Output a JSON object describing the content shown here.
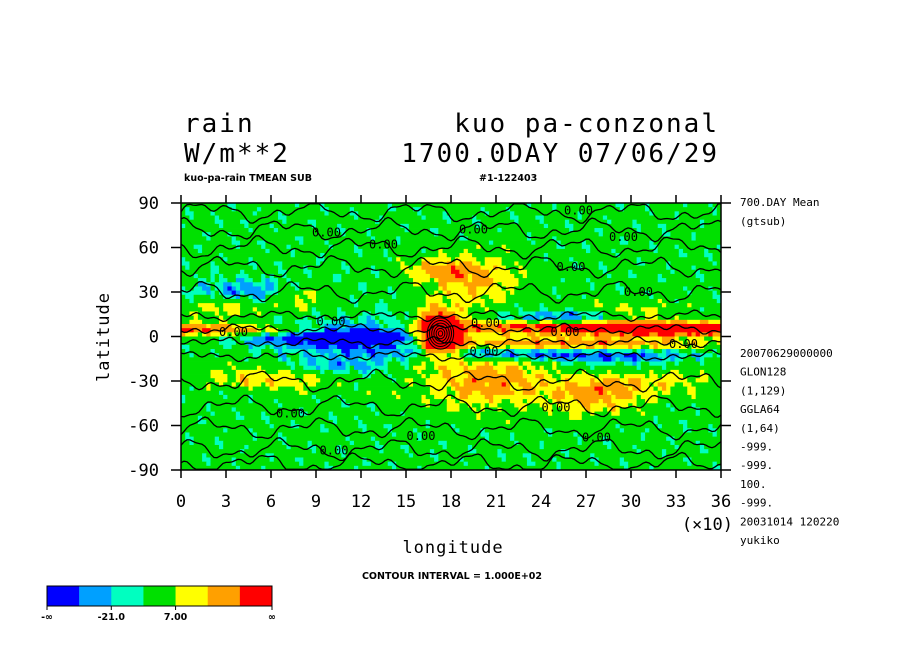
{
  "header": {
    "title_left_1": "rain",
    "title_left_2": "W/m**2",
    "title_right_1": "kuo pa-conzonal",
    "title_right_2": "1700.0DAY 07/06/29",
    "sub_left": "kuo-pa-rain TMEAN SUB",
    "sub_right": "#1-122403"
  },
  "side_info": {
    "lines_top": [
      "700.DAY Mean",
      "(gtsub)"
    ],
    "lines_bottom": [
      "20070629000000",
      "GLON128",
      "(1,129)",
      "GGLA64",
      "(1,64)",
      "-999.",
      "-999.",
      "100.",
      "-999.",
      "20031014 120220",
      "yukiko"
    ]
  },
  "footer": {
    "contour_interval": "CONTOUR INTERVAL = 1.000E+02",
    "x_multiplier": "(×10)"
  },
  "colorbar": {
    "colors": [
      "#0000ff",
      "#00a0ff",
      "#00ffc0",
      "#00e000",
      "#ffff00",
      "#ffa000",
      "#ff0000"
    ],
    "labels": [
      "-∞",
      "-21.0",
      "7.00",
      "∞"
    ]
  },
  "chart_data": {
    "type": "heatmap",
    "xlabel": "longitude",
    "ylabel": "latitude",
    "xlim": [
      0,
      36
    ],
    "ylim": [
      -90,
      90
    ],
    "x_ticks": [
      "0",
      "3",
      "6",
      "9",
      "12",
      "15",
      "18",
      "21",
      "24",
      "27",
      "30",
      "33",
      "36"
    ],
    "y_ticks": [
      "90",
      "60",
      "30",
      "0",
      "-30",
      "-60",
      "-90"
    ],
    "contour_labels": [
      {
        "text": "0.00",
        "lon": 26.5,
        "lat": 85
      },
      {
        "text": "0.00",
        "lon": 9.7,
        "lat": 70
      },
      {
        "text": "0.00",
        "lon": 19.5,
        "lat": 72
      },
      {
        "text": "0.00",
        "lon": 13.5,
        "lat": 62
      },
      {
        "text": "0.00",
        "lon": 29.5,
        "lat": 67
      },
      {
        "text": "0.00",
        "lon": 26,
        "lat": 47
      },
      {
        "text": "0.00",
        "lon": 30.5,
        "lat": 30
      },
      {
        "text": "0.00",
        "lon": 10,
        "lat": 10
      },
      {
        "text": "0.00",
        "lon": 3.5,
        "lat": 3
      },
      {
        "text": "0.00",
        "lon": 20.3,
        "lat": 9
      },
      {
        "text": "0.00",
        "lon": 25.6,
        "lat": 3
      },
      {
        "text": "0.00",
        "lon": 33.5,
        "lat": -5
      },
      {
        "text": "0.00",
        "lon": 20.2,
        "lat": -10
      },
      {
        "text": "0.00",
        "lon": 25,
        "lat": -48
      },
      {
        "text": "0.00",
        "lon": 7.3,
        "lat": -52
      },
      {
        "text": "0.00",
        "lon": 16,
        "lat": -67
      },
      {
        "text": "0.00",
        "lon": 27.7,
        "lat": -68
      },
      {
        "text": "0.00",
        "lon": 10.2,
        "lat": -77
      }
    ]
  }
}
